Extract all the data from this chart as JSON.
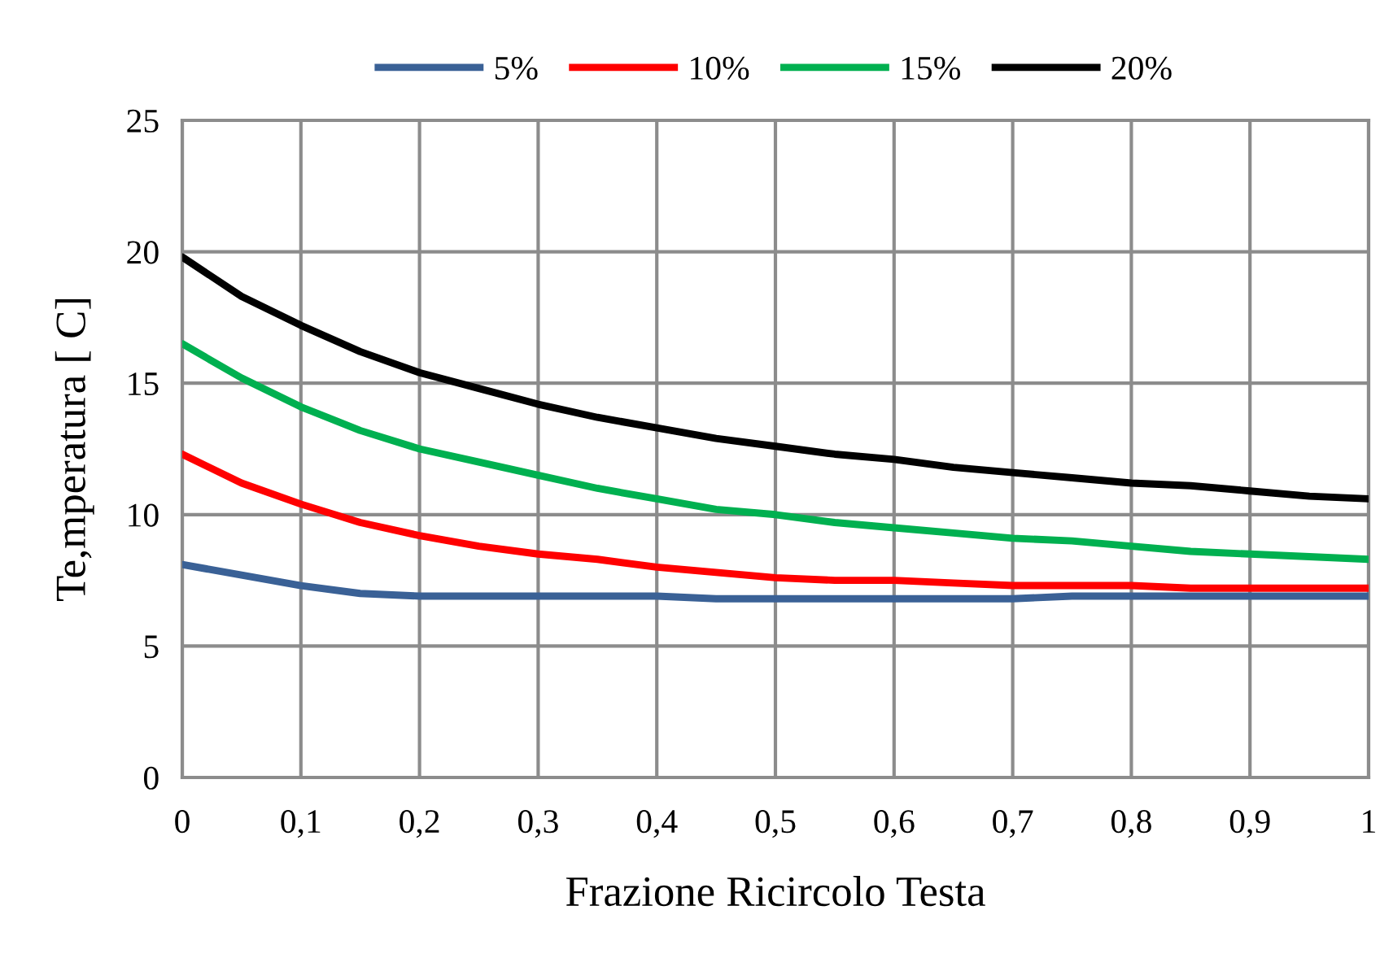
{
  "chart_data": {
    "type": "line",
    "xlabel": "Frazione Ricircolo Testa",
    "ylabel": "Te,mperatura [ C]",
    "x": [
      0,
      0.05,
      0.1,
      0.15,
      0.2,
      0.25,
      0.3,
      0.35,
      0.4,
      0.45,
      0.5,
      0.55,
      0.6,
      0.65,
      0.7,
      0.75,
      0.8,
      0.85,
      0.9,
      0.95,
      1
    ],
    "series": [
      {
        "name": "5%",
        "color": "#3a6196",
        "values": [
          8.1,
          7.7,
          7.3,
          7.0,
          6.9,
          6.9,
          6.9,
          6.9,
          6.9,
          6.8,
          6.8,
          6.8,
          6.8,
          6.8,
          6.8,
          6.9,
          6.9,
          6.9,
          6.9,
          6.9,
          6.9
        ]
      },
      {
        "name": "10%",
        "color": "#ff0000",
        "values": [
          12.3,
          11.2,
          10.4,
          9.7,
          9.2,
          8.8,
          8.5,
          8.3,
          8.0,
          7.8,
          7.6,
          7.5,
          7.5,
          7.4,
          7.3,
          7.3,
          7.3,
          7.2,
          7.2,
          7.2,
          7.2
        ]
      },
      {
        "name": "15%",
        "color": "#00b050",
        "values": [
          16.5,
          15.2,
          14.1,
          13.2,
          12.5,
          12.0,
          11.5,
          11.0,
          10.6,
          10.2,
          10.0,
          9.7,
          9.5,
          9.3,
          9.1,
          9.0,
          8.8,
          8.6,
          8.5,
          8.4,
          8.3
        ]
      },
      {
        "name": "20%",
        "color": "#000000",
        "values": [
          19.8,
          18.3,
          17.2,
          16.2,
          15.4,
          14.8,
          14.2,
          13.7,
          13.3,
          12.9,
          12.6,
          12.3,
          12.1,
          11.8,
          11.6,
          11.4,
          11.2,
          11.1,
          10.9,
          10.7,
          10.6
        ]
      }
    ],
    "xlim": [
      0,
      1
    ],
    "ylim": [
      0,
      25
    ],
    "xticks": [
      0,
      {
        "value": 0.1,
        "label": "0,1"
      },
      {
        "value": 0.2,
        "label": "0,2"
      },
      {
        "value": 0.3,
        "label": "0,3"
      },
      {
        "value": 0.4,
        "label": "0,4"
      },
      {
        "value": 0.5,
        "label": "0,5"
      },
      {
        "value": 0.6,
        "label": "0,6"
      },
      {
        "value": 0.7,
        "label": "0,7"
      },
      {
        "value": 0.8,
        "label": "0,8"
      },
      {
        "value": 0.9,
        "label": "0,9"
      },
      1
    ],
    "yticks": [
      0,
      5,
      10,
      15,
      20,
      25
    ],
    "grid": true,
    "legend": "top",
    "marker": "none",
    "line_style": "solid"
  }
}
